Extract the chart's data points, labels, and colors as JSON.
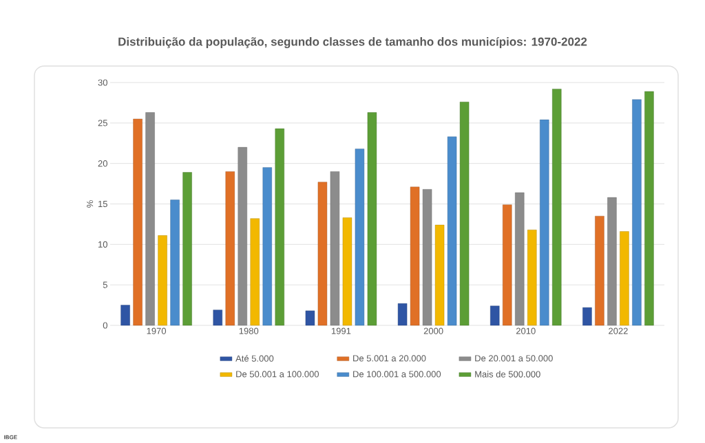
{
  "chart_data": {
    "type": "bar",
    "title": "Distribuição da população, segundo classes de tamanho dos municípios: 1970-2022",
    "ylabel": "%",
    "categories": [
      "1970",
      "1980",
      "1991",
      "2000",
      "2010",
      "2022"
    ],
    "series": [
      {
        "name": "Até 5.000",
        "color": "#2f55a4",
        "values": [
          2.5,
          1.9,
          1.8,
          2.7,
          2.4,
          2.2
        ]
      },
      {
        "name": "De 5.001 a 20.000",
        "color": "#e07026",
        "values": [
          25.5,
          19.0,
          17.7,
          17.1,
          14.9,
          13.5
        ]
      },
      {
        "name": "De 20.001 a 50.000",
        "color": "#8c8c8c",
        "values": [
          26.3,
          22.0,
          19.0,
          16.8,
          16.4,
          15.8
        ]
      },
      {
        "name": "De 50.001 a 100.000",
        "color": "#f2b800",
        "values": [
          11.1,
          13.2,
          13.3,
          12.4,
          11.8,
          11.6
        ]
      },
      {
        "name": "De 100.001 a 500.000",
        "color": "#4a8ccc",
        "values": [
          15.5,
          19.5,
          21.8,
          23.3,
          25.4,
          27.9
        ]
      },
      {
        "name": "Mais de 500.000",
        "color": "#5c9e36",
        "values": [
          18.9,
          24.3,
          26.3,
          27.6,
          29.2,
          28.9
        ]
      }
    ],
    "ylim": [
      0,
      30
    ],
    "yticks": [
      0,
      5,
      10,
      15,
      20,
      25,
      30
    ],
    "grid": "y",
    "legend": "bottom",
    "annotations": [
      "IBGE"
    ]
  }
}
